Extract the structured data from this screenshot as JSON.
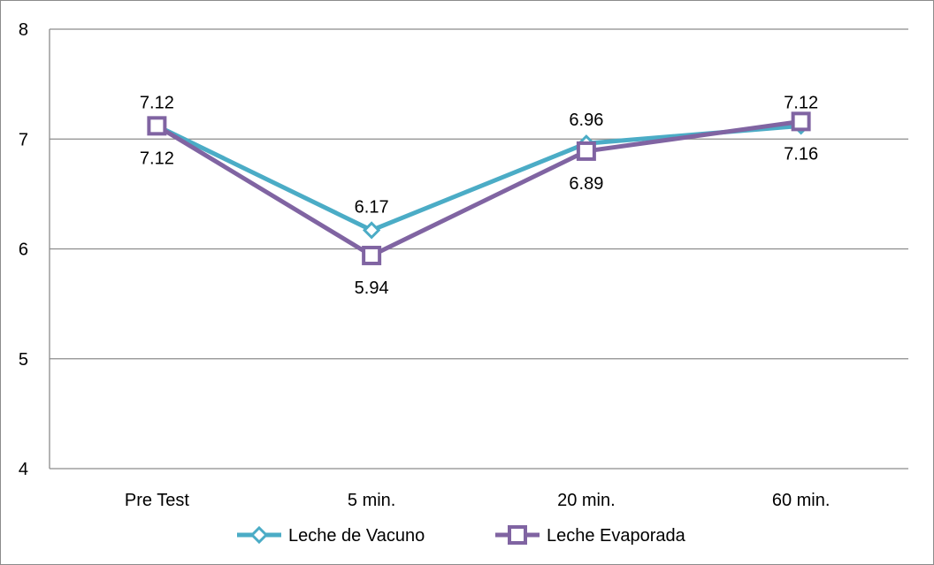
{
  "chart_data": {
    "type": "line",
    "title": "",
    "xlabel": "",
    "ylabel": "",
    "categories": [
      "Pre Test",
      "5 min.",
      "20 min.",
      "60 min."
    ],
    "ylim": [
      4,
      8
    ],
    "yticks": [
      "4",
      "5",
      "6",
      "7",
      "8"
    ],
    "grid": true,
    "legend_position": "bottom",
    "series": [
      {
        "name": "Leche de Vacuno",
        "values": [
          7.12,
          6.17,
          6.96,
          7.12
        ],
        "labels": [
          "7.12",
          "6.17",
          "6.96",
          "7.12"
        ],
        "label_position": "above",
        "color": "#4bacc6",
        "marker": "diamond"
      },
      {
        "name": "Leche Evaporada",
        "values": [
          7.12,
          5.94,
          6.89,
          7.16
        ],
        "labels": [
          "7.12",
          "5.94",
          "6.89",
          "7.16"
        ],
        "label_position": "below",
        "color": "#8064a2",
        "marker": "square"
      }
    ]
  }
}
